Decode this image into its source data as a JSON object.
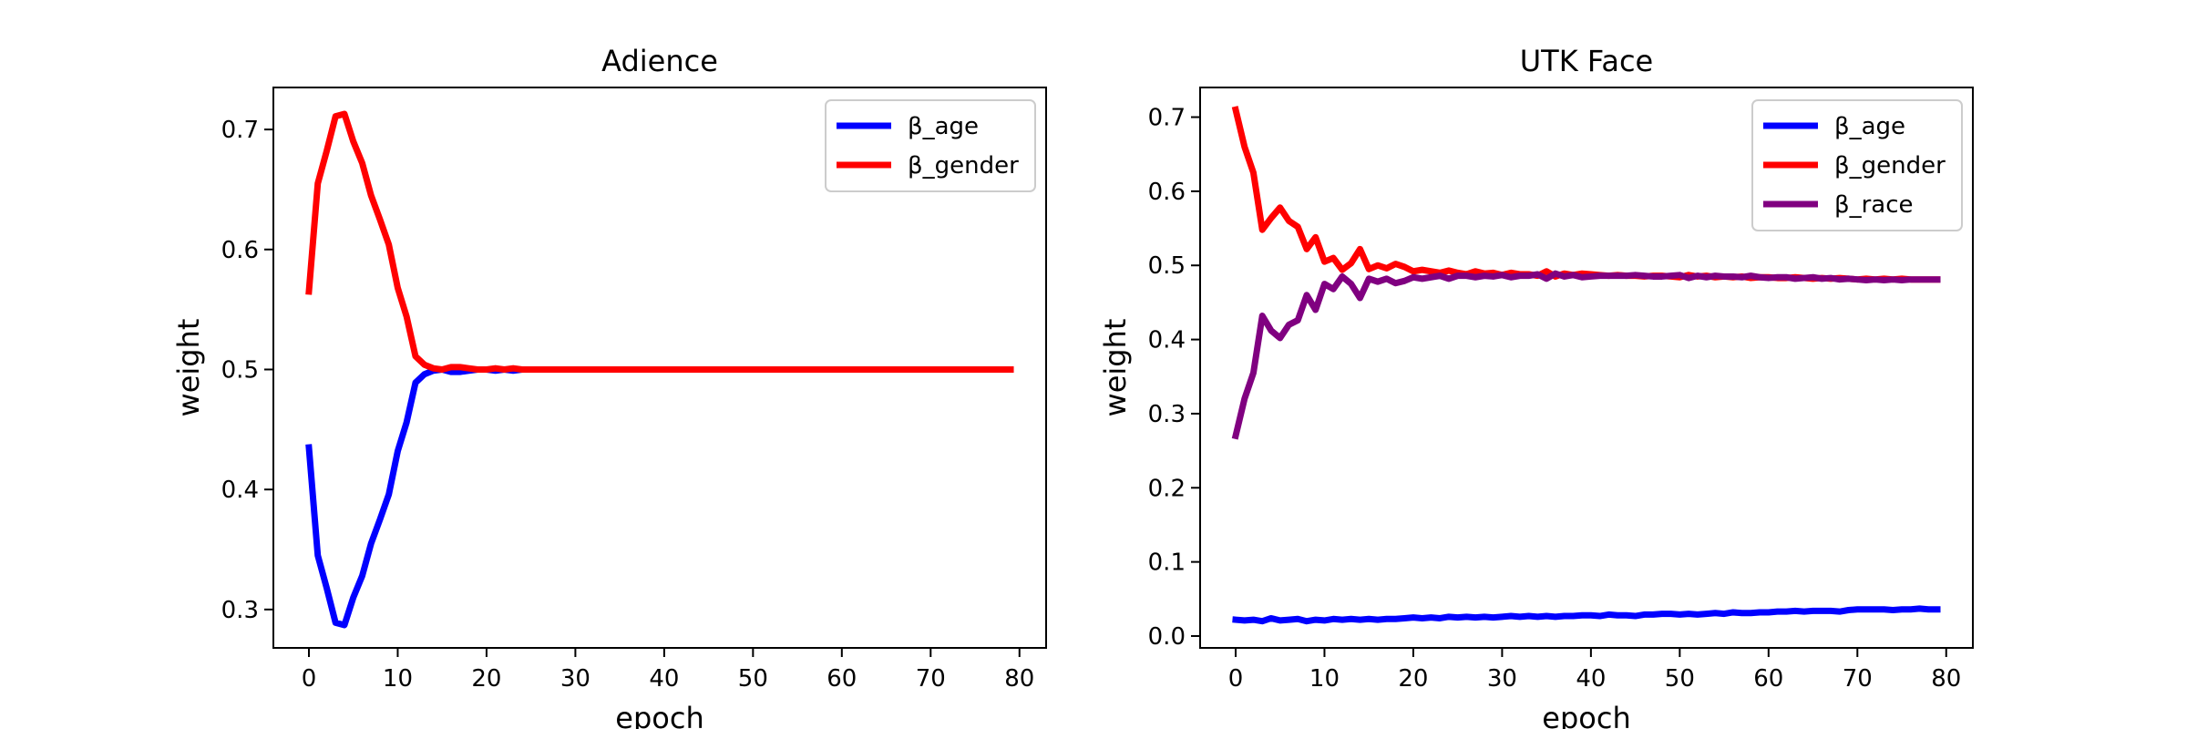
{
  "chart_data": [
    {
      "type": "line",
      "title": "Adience",
      "xlabel": "epoch",
      "ylabel": "weight",
      "xlim": [
        -4,
        83
      ],
      "ylim": [
        0.268,
        0.735
      ],
      "xticks": [
        0,
        10,
        20,
        30,
        40,
        50,
        60,
        70,
        80
      ],
      "yticks": [
        0.3,
        0.4,
        0.5,
        0.6,
        0.7
      ],
      "legend": "top-right",
      "grid": false,
      "series": [
        {
          "name": "β_age",
          "color": "#0000ff",
          "x": [
            0,
            1,
            2,
            3,
            4,
            5,
            6,
            7,
            8,
            9,
            10,
            11,
            12,
            13,
            14,
            15,
            16,
            17,
            18,
            19,
            20,
            21,
            22,
            23,
            24,
            25,
            26,
            27,
            28,
            29,
            30,
            31,
            32,
            33,
            34,
            35,
            36,
            37,
            38,
            39,
            40,
            41,
            42,
            43,
            44,
            45,
            46,
            47,
            48,
            49,
            50,
            51,
            52,
            53,
            54,
            55,
            56,
            57,
            58,
            59,
            60,
            61,
            62,
            63,
            64,
            65,
            66,
            67,
            68,
            69,
            70,
            71,
            72,
            73,
            74,
            75,
            76,
            77,
            78,
            79
          ],
          "values": [
            0.435,
            0.345,
            0.318,
            0.289,
            0.287,
            0.31,
            0.328,
            0.355,
            0.375,
            0.396,
            0.432,
            0.456,
            0.489,
            0.496,
            0.499,
            0.5,
            0.498,
            0.498,
            0.499,
            0.5,
            0.5,
            0.499,
            0.5,
            0.499,
            0.5,
            0.5,
            0.5,
            0.5,
            0.5,
            0.5,
            0.5,
            0.5,
            0.5,
            0.5,
            0.5,
            0.5,
            0.5,
            0.5,
            0.5,
            0.5,
            0.5,
            0.5,
            0.5,
            0.5,
            0.5,
            0.5,
            0.5,
            0.5,
            0.5,
            0.5,
            0.5,
            0.5,
            0.5,
            0.5,
            0.5,
            0.5,
            0.5,
            0.5,
            0.5,
            0.5,
            0.5,
            0.5,
            0.5,
            0.5,
            0.5,
            0.5,
            0.5,
            0.5,
            0.5,
            0.5,
            0.5,
            0.5,
            0.5,
            0.5,
            0.5,
            0.5,
            0.5,
            0.5,
            0.5,
            0.5
          ]
        },
        {
          "name": "β_gender",
          "color": "#ff0000",
          "x": [
            0,
            1,
            2,
            3,
            4,
            5,
            6,
            7,
            8,
            9,
            10,
            11,
            12,
            13,
            14,
            15,
            16,
            17,
            18,
            19,
            20,
            21,
            22,
            23,
            24,
            25,
            26,
            27,
            28,
            29,
            30,
            31,
            32,
            33,
            34,
            35,
            36,
            37,
            38,
            39,
            40,
            41,
            42,
            43,
            44,
            45,
            46,
            47,
            48,
            49,
            50,
            51,
            52,
            53,
            54,
            55,
            56,
            57,
            58,
            59,
            60,
            61,
            62,
            63,
            64,
            65,
            66,
            67,
            68,
            69,
            70,
            71,
            72,
            73,
            74,
            75,
            76,
            77,
            78,
            79
          ],
          "values": [
            0.565,
            0.655,
            0.682,
            0.711,
            0.713,
            0.69,
            0.672,
            0.645,
            0.625,
            0.604,
            0.568,
            0.544,
            0.511,
            0.504,
            0.501,
            0.5,
            0.502,
            0.502,
            0.501,
            0.5,
            0.5,
            0.501,
            0.5,
            0.501,
            0.5,
            0.5,
            0.5,
            0.5,
            0.5,
            0.5,
            0.5,
            0.5,
            0.5,
            0.5,
            0.5,
            0.5,
            0.5,
            0.5,
            0.5,
            0.5,
            0.5,
            0.5,
            0.5,
            0.5,
            0.5,
            0.5,
            0.5,
            0.5,
            0.5,
            0.5,
            0.5,
            0.5,
            0.5,
            0.5,
            0.5,
            0.5,
            0.5,
            0.5,
            0.5,
            0.5,
            0.5,
            0.5,
            0.5,
            0.5,
            0.5,
            0.5,
            0.5,
            0.5,
            0.5,
            0.5,
            0.5,
            0.5,
            0.5,
            0.5,
            0.5,
            0.5,
            0.5,
            0.5,
            0.5,
            0.5
          ]
        }
      ]
    },
    {
      "type": "line",
      "title": "UTK Face",
      "xlabel": "epoch",
      "ylabel": "weight",
      "xlim": [
        -4,
        83
      ],
      "ylim": [
        -0.016,
        0.74
      ],
      "xticks": [
        0,
        10,
        20,
        30,
        40,
        50,
        60,
        70,
        80
      ],
      "yticks": [
        0.0,
        0.1,
        0.2,
        0.3,
        0.4,
        0.5,
        0.6,
        0.7
      ],
      "legend": "top-right",
      "grid": false,
      "series": [
        {
          "name": "β_age",
          "color": "#0000ff",
          "x": [
            0,
            1,
            2,
            3,
            4,
            5,
            6,
            7,
            8,
            9,
            10,
            11,
            12,
            13,
            14,
            15,
            16,
            17,
            18,
            19,
            20,
            21,
            22,
            23,
            24,
            25,
            26,
            27,
            28,
            29,
            30,
            31,
            32,
            33,
            34,
            35,
            36,
            37,
            38,
            39,
            40,
            41,
            42,
            43,
            44,
            45,
            46,
            47,
            48,
            49,
            50,
            51,
            52,
            53,
            54,
            55,
            56,
            57,
            58,
            59,
            60,
            61,
            62,
            63,
            64,
            65,
            66,
            67,
            68,
            69,
            70,
            71,
            72,
            73,
            74,
            75,
            76,
            77,
            78,
            79
          ],
          "values": [
            0.022,
            0.021,
            0.022,
            0.02,
            0.024,
            0.021,
            0.022,
            0.023,
            0.02,
            0.022,
            0.021,
            0.023,
            0.022,
            0.023,
            0.022,
            0.023,
            0.022,
            0.023,
            0.023,
            0.024,
            0.025,
            0.024,
            0.025,
            0.024,
            0.026,
            0.025,
            0.026,
            0.025,
            0.026,
            0.025,
            0.026,
            0.027,
            0.026,
            0.027,
            0.026,
            0.027,
            0.026,
            0.027,
            0.027,
            0.028,
            0.028,
            0.027,
            0.029,
            0.028,
            0.028,
            0.027,
            0.029,
            0.029,
            0.03,
            0.03,
            0.029,
            0.03,
            0.029,
            0.03,
            0.031,
            0.03,
            0.032,
            0.031,
            0.031,
            0.032,
            0.032,
            0.033,
            0.033,
            0.034,
            0.033,
            0.034,
            0.034,
            0.034,
            0.033,
            0.035,
            0.036,
            0.036,
            0.036,
            0.036,
            0.035,
            0.036,
            0.036,
            0.037,
            0.036,
            0.036
          ]
        },
        {
          "name": "β_gender",
          "color": "#ff0000",
          "x": [
            0,
            1,
            2,
            3,
            4,
            5,
            6,
            7,
            8,
            9,
            10,
            11,
            12,
            13,
            14,
            15,
            16,
            17,
            18,
            19,
            20,
            21,
            22,
            23,
            24,
            25,
            26,
            27,
            28,
            29,
            30,
            31,
            32,
            33,
            34,
            35,
            36,
            37,
            38,
            39,
            40,
            41,
            42,
            43,
            44,
            45,
            46,
            47,
            48,
            49,
            50,
            51,
            52,
            53,
            54,
            55,
            56,
            57,
            58,
            59,
            60,
            61,
            62,
            63,
            64,
            65,
            66,
            67,
            68,
            69,
            70,
            71,
            72,
            73,
            74,
            75,
            76,
            77,
            78,
            79
          ],
          "values": [
            0.71,
            0.66,
            0.625,
            0.548,
            0.564,
            0.578,
            0.56,
            0.552,
            0.522,
            0.538,
            0.505,
            0.51,
            0.494,
            0.503,
            0.522,
            0.495,
            0.5,
            0.496,
            0.502,
            0.498,
            0.492,
            0.494,
            0.492,
            0.49,
            0.493,
            0.49,
            0.488,
            0.492,
            0.489,
            0.49,
            0.487,
            0.49,
            0.488,
            0.488,
            0.486,
            0.492,
            0.485,
            0.489,
            0.487,
            0.489,
            0.488,
            0.487,
            0.486,
            0.487,
            0.486,
            0.486,
            0.485,
            0.486,
            0.486,
            0.485,
            0.484,
            0.487,
            0.485,
            0.486,
            0.484,
            0.485,
            0.484,
            0.485,
            0.483,
            0.484,
            0.484,
            0.483,
            0.483,
            0.484,
            0.483,
            0.482,
            0.483,
            0.482,
            0.483,
            0.482,
            0.481,
            0.482,
            0.481,
            0.482,
            0.481,
            0.482,
            0.481,
            0.481,
            0.481,
            0.481
          ]
        },
        {
          "name": "β_race",
          "color": "#800080",
          "x": [
            0,
            1,
            2,
            3,
            4,
            5,
            6,
            7,
            8,
            9,
            10,
            11,
            12,
            13,
            14,
            15,
            16,
            17,
            18,
            19,
            20,
            21,
            22,
            23,
            24,
            25,
            26,
            27,
            28,
            29,
            30,
            31,
            32,
            33,
            34,
            35,
            36,
            37,
            38,
            39,
            40,
            41,
            42,
            43,
            44,
            45,
            46,
            47,
            48,
            49,
            50,
            51,
            52,
            53,
            54,
            55,
            56,
            57,
            58,
            59,
            60,
            61,
            62,
            63,
            64,
            65,
            66,
            67,
            68,
            69,
            70,
            71,
            72,
            73,
            74,
            75,
            76,
            77,
            78,
            79
          ],
          "values": [
            0.27,
            0.32,
            0.355,
            0.432,
            0.412,
            0.402,
            0.42,
            0.426,
            0.46,
            0.44,
            0.475,
            0.468,
            0.485,
            0.475,
            0.456,
            0.482,
            0.478,
            0.482,
            0.476,
            0.479,
            0.484,
            0.482,
            0.484,
            0.486,
            0.482,
            0.486,
            0.486,
            0.484,
            0.486,
            0.485,
            0.487,
            0.484,
            0.486,
            0.486,
            0.488,
            0.482,
            0.489,
            0.485,
            0.487,
            0.484,
            0.485,
            0.486,
            0.486,
            0.486,
            0.486,
            0.487,
            0.486,
            0.485,
            0.485,
            0.486,
            0.487,
            0.483,
            0.486,
            0.484,
            0.486,
            0.485,
            0.485,
            0.484,
            0.486,
            0.484,
            0.483,
            0.484,
            0.484,
            0.482,
            0.483,
            0.484,
            0.482,
            0.483,
            0.481,
            0.482,
            0.481,
            0.48,
            0.481,
            0.48,
            0.481,
            0.48,
            0.481,
            0.481,
            0.481,
            0.481
          ]
        }
      ]
    }
  ]
}
